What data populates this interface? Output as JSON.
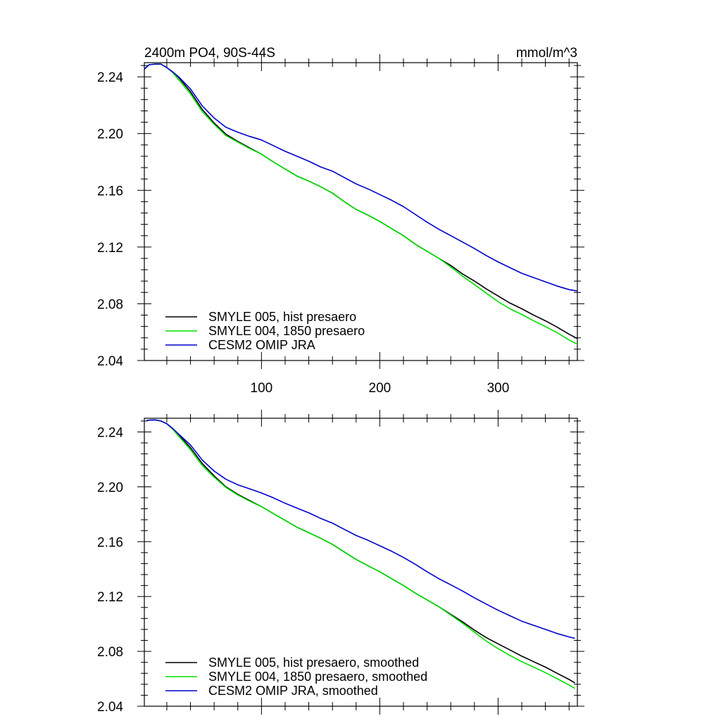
{
  "chart_data": [
    {
      "type": "line",
      "title_left": "2400m PO4, 90S-44S",
      "title_right": "mmol/m^3",
      "xlabel": "",
      "ylabel": "",
      "xlim": [
        1,
        367
      ],
      "ylim": [
        2.04,
        2.25
      ],
      "x_ticks": [
        100,
        200,
        300
      ],
      "x_tick_labels": [
        "100",
        "200",
        "300"
      ],
      "y_ticks": [
        2.04,
        2.08,
        2.12,
        2.16,
        2.2,
        2.24
      ],
      "y_tick_labels": [
        "2.04",
        "2.08",
        "2.12",
        "2.16",
        "2.20",
        "2.24"
      ],
      "legend_position": "bottom-left",
      "series": [
        {
          "name": "SMYLE 005, hist presaero",
          "color": "#000000",
          "x": [
            1,
            5,
            10,
            15,
            20,
            25,
            30,
            40,
            50,
            60,
            70,
            80,
            90,
            100,
            110,
            120,
            130,
            140,
            150,
            160,
            170,
            180,
            190,
            200,
            210,
            220,
            230,
            240,
            250,
            260,
            270,
            280,
            290,
            300,
            310,
            320,
            330,
            340,
            350,
            360,
            367
          ],
          "values": [
            2.2455,
            2.2485,
            2.249,
            2.249,
            2.2465,
            2.2435,
            2.2395,
            2.2295,
            2.217,
            2.2075,
            2.1995,
            2.1945,
            2.19,
            2.1855,
            2.18,
            2.175,
            2.17,
            2.1665,
            2.1625,
            2.158,
            2.152,
            2.1465,
            2.1425,
            2.138,
            2.133,
            2.128,
            2.122,
            2.117,
            2.112,
            2.107,
            2.101,
            2.096,
            2.0905,
            2.0855,
            2.0805,
            2.0765,
            2.072,
            2.068,
            2.0635,
            2.0585,
            2.0555
          ]
        },
        {
          "name": "SMYLE 004, 1850 presaero",
          "color": "#00e000",
          "x": [
            1,
            5,
            10,
            15,
            20,
            25,
            30,
            40,
            50,
            60,
            70,
            80,
            90,
            100,
            110,
            120,
            130,
            140,
            150,
            160,
            170,
            180,
            190,
            200,
            210,
            220,
            230,
            240,
            250,
            260,
            270,
            280,
            290,
            300,
            310,
            320,
            330,
            340,
            350,
            360,
            367
          ],
          "values": [
            2.2455,
            2.2485,
            2.249,
            2.249,
            2.2465,
            2.243,
            2.238,
            2.228,
            2.2155,
            2.2065,
            2.1985,
            2.194,
            2.1895,
            2.1855,
            2.18,
            2.175,
            2.17,
            2.1665,
            2.1625,
            2.158,
            2.152,
            2.1465,
            2.1425,
            2.138,
            2.133,
            2.128,
            2.122,
            2.117,
            2.112,
            2.106,
            2.0995,
            2.0935,
            2.0875,
            2.0815,
            2.0765,
            2.0725,
            2.068,
            2.064,
            2.0595,
            2.0545,
            2.0515
          ]
        },
        {
          "name": "CESM2 OMIP JRA",
          "color": "#0000cc",
          "x": [
            1,
            5,
            10,
            15,
            20,
            25,
            30,
            40,
            50,
            60,
            70,
            80,
            90,
            100,
            110,
            120,
            130,
            140,
            150,
            160,
            170,
            180,
            190,
            200,
            210,
            220,
            230,
            240,
            250,
            260,
            270,
            280,
            290,
            300,
            310,
            320,
            330,
            340,
            350,
            360,
            367
          ],
          "values": [
            2.2455,
            2.2485,
            2.249,
            2.249,
            2.2465,
            2.2435,
            2.24,
            2.2315,
            2.2195,
            2.211,
            2.2045,
            2.201,
            2.198,
            2.1955,
            2.1915,
            2.1875,
            2.184,
            2.1805,
            2.1765,
            2.1735,
            2.169,
            2.1645,
            2.161,
            2.157,
            2.153,
            2.1485,
            2.143,
            2.1375,
            2.1325,
            2.128,
            2.1235,
            2.119,
            2.114,
            2.1095,
            2.1055,
            2.1015,
            2.0985,
            2.0955,
            2.0925,
            2.09,
            2.089
          ]
        }
      ]
    },
    {
      "type": "line",
      "title_left": "",
      "title_right": "",
      "xlabel": "",
      "ylabel": "",
      "xlim": [
        1,
        367
      ],
      "ylim": [
        2.04,
        2.25
      ],
      "x_ticks": [
        100,
        200,
        300
      ],
      "x_tick_labels": [
        "",
        "",
        ""
      ],
      "y_ticks": [
        2.04,
        2.08,
        2.12,
        2.16,
        2.2,
        2.24
      ],
      "y_tick_labels": [
        "2.04",
        "2.08",
        "2.12",
        "2.16",
        "2.20",
        "2.24"
      ],
      "legend_position": "bottom-left",
      "series": [
        {
          "name": "SMYLE 005, hist presaero, smoothed",
          "color": "#000000",
          "x": [
            3,
            10,
            15,
            20,
            25,
            30,
            40,
            50,
            60,
            70,
            80,
            90,
            100,
            110,
            120,
            130,
            140,
            150,
            160,
            170,
            180,
            190,
            200,
            210,
            220,
            230,
            240,
            250,
            260,
            270,
            280,
            290,
            300,
            310,
            320,
            330,
            340,
            350,
            360,
            365
          ],
          "values": [
            2.2485,
            2.2488,
            2.248,
            2.246,
            2.2425,
            2.238,
            2.2285,
            2.217,
            2.208,
            2.2,
            2.1945,
            2.19,
            2.1855,
            2.1805,
            2.1755,
            2.1705,
            2.1665,
            2.1625,
            2.158,
            2.1525,
            2.147,
            2.1425,
            2.138,
            2.133,
            2.128,
            2.1225,
            2.1175,
            2.1125,
            2.107,
            2.1015,
            2.0955,
            2.09,
            2.0855,
            2.081,
            2.0765,
            2.0725,
            2.0685,
            2.064,
            2.0595,
            2.057
          ]
        },
        {
          "name": "SMYLE 004, 1850 presaero, smoothed",
          "color": "#00e000",
          "x": [
            3,
            10,
            15,
            20,
            25,
            30,
            40,
            50,
            60,
            70,
            80,
            90,
            100,
            110,
            120,
            130,
            140,
            150,
            160,
            170,
            180,
            190,
            200,
            210,
            220,
            230,
            240,
            250,
            260,
            270,
            280,
            290,
            300,
            310,
            320,
            330,
            340,
            350,
            360,
            365
          ],
          "values": [
            2.2485,
            2.2488,
            2.248,
            2.246,
            2.242,
            2.237,
            2.227,
            2.2155,
            2.207,
            2.1995,
            2.194,
            2.1895,
            2.1855,
            2.1805,
            2.1755,
            2.1705,
            2.1665,
            2.1625,
            2.158,
            2.1525,
            2.147,
            2.1425,
            2.138,
            2.133,
            2.128,
            2.1225,
            2.1175,
            2.1125,
            2.1065,
            2.1005,
            2.094,
            2.0875,
            2.082,
            2.077,
            2.0725,
            2.0685,
            2.0645,
            2.06,
            2.0555,
            2.053
          ]
        },
        {
          "name": "CESM2 OMIP JRA, smoothed",
          "color": "#0000cc",
          "x": [
            3,
            10,
            15,
            20,
            25,
            30,
            40,
            50,
            60,
            70,
            80,
            90,
            100,
            110,
            120,
            130,
            140,
            150,
            160,
            170,
            180,
            190,
            200,
            210,
            220,
            230,
            240,
            250,
            260,
            270,
            280,
            290,
            300,
            310,
            320,
            330,
            340,
            350,
            360,
            365
          ],
          "values": [
            2.2485,
            2.2488,
            2.248,
            2.246,
            2.2425,
            2.2385,
            2.2305,
            2.2195,
            2.2115,
            2.2055,
            2.2015,
            2.1985,
            2.1955,
            2.192,
            2.188,
            2.1845,
            2.181,
            2.177,
            2.1735,
            2.169,
            2.1645,
            2.161,
            2.157,
            2.153,
            2.1485,
            2.1435,
            2.138,
            2.133,
            2.1285,
            2.124,
            2.119,
            2.1145,
            2.11,
            2.106,
            2.102,
            2.099,
            2.096,
            2.093,
            2.0905,
            2.0895
          ]
        }
      ]
    }
  ]
}
